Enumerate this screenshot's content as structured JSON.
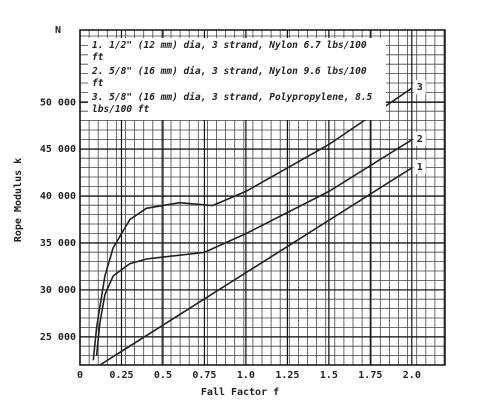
{
  "chart_data": {
    "type": "line",
    "ylabel": "Rope Modulus k",
    "y_unit": "N",
    "xlabel": "Fall Factor f",
    "xlim": [
      0,
      2.2
    ],
    "ylim": [
      22000,
      57700
    ],
    "xticks": [
      0,
      0.25,
      0.5,
      0.75,
      {
        "value": 1,
        "label": "1.0"
      },
      1.25,
      1.5,
      1.75,
      {
        "value": 2,
        "label": "2.0"
      }
    ],
    "yticks": [
      {
        "value": 25000,
        "label": "25 000"
      },
      {
        "value": 30000,
        "label": "30 000"
      },
      {
        "value": 35000,
        "label": "35 000"
      },
      {
        "value": 40000,
        "label": "40 000"
      },
      {
        "value": 45000,
        "label": "45 000"
      },
      {
        "value": 50000,
        "label": "50 000"
      }
    ],
    "grid": true,
    "series": [
      {
        "name": "1. 1/2\" (12 mm) dia, 3 strand, Nylon 6.7 lbs/100 ft",
        "label": "1",
        "color": "#222",
        "x": [
          0.12,
          2.0
        ],
        "values": [
          22000,
          43000
        ]
      },
      {
        "name": "2. 5/8\" (16 mm) dia, 3 strand, Nylon 9.6 lbs/100 ft",
        "label": "2",
        "color": "#222",
        "x": [
          0.1,
          0.12,
          0.15,
          0.2,
          0.3,
          0.4,
          0.5,
          0.75,
          1.0,
          1.5,
          2.0
        ],
        "values": [
          23000,
          26500,
          29500,
          31500,
          32800,
          33300,
          33500,
          34000,
          36000,
          40500,
          46000
        ]
      },
      {
        "name": "3. 5/8\" (16 mm) dia, 3 strand, Polypropylene, 8.5 lbs/100 ft",
        "label": "3",
        "color": "#222",
        "x": [
          0.08,
          0.1,
          0.15,
          0.2,
          0.3,
          0.4,
          0.6,
          0.8,
          1.0,
          1.5,
          2.0
        ],
        "values": [
          22500,
          26000,
          31500,
          34500,
          37500,
          38700,
          39300,
          39000,
          40500,
          45500,
          51500
        ]
      }
    ]
  }
}
